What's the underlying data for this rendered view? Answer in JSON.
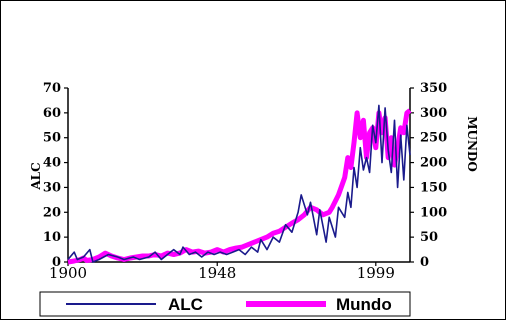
{
  "chart_data": {
    "type": "line",
    "title": "",
    "xlabel": "",
    "x_ticks": [
      "1900",
      "1948",
      "1999"
    ],
    "xlim": [
      1900,
      2010
    ],
    "left_axis": {
      "label": "ALC",
      "ylim": [
        0,
        70
      ],
      "ticks": [
        "0",
        "10",
        "20",
        "30",
        "40",
        "50",
        "60",
        "70"
      ]
    },
    "right_axis": {
      "label": "MUNDO",
      "ylim": [
        0,
        350
      ],
      "ticks": [
        "0",
        "50",
        "100",
        "150",
        "200",
        "250",
        "300",
        "350"
      ]
    },
    "grid": false,
    "legend_placement": "bottom",
    "series": [
      {
        "name": "ALC",
        "axis": "left",
        "color": "#1a1a8c",
        "points": [
          [
            1900,
            1
          ],
          [
            1902,
            4
          ],
          [
            1903,
            1
          ],
          [
            1905,
            2
          ],
          [
            1907,
            5
          ],
          [
            1908,
            0
          ],
          [
            1910,
            1
          ],
          [
            1913,
            3
          ],
          [
            1916,
            2
          ],
          [
            1918,
            1
          ],
          [
            1921,
            2
          ],
          [
            1923,
            1
          ],
          [
            1926,
            2
          ],
          [
            1928,
            4
          ],
          [
            1930,
            1
          ],
          [
            1932,
            3
          ],
          [
            1934,
            5
          ],
          [
            1936,
            3
          ],
          [
            1937,
            6
          ],
          [
            1939,
            3
          ],
          [
            1941,
            4
          ],
          [
            1943,
            2
          ],
          [
            1945,
            4
          ],
          [
            1947,
            3
          ],
          [
            1949,
            4
          ],
          [
            1951,
            3
          ],
          [
            1953,
            4
          ],
          [
            1955,
            5
          ],
          [
            1957,
            3
          ],
          [
            1959,
            6
          ],
          [
            1961,
            4
          ],
          [
            1962,
            9
          ],
          [
            1964,
            5
          ],
          [
            1966,
            10
          ],
          [
            1968,
            8
          ],
          [
            1970,
            15
          ],
          [
            1972,
            12
          ],
          [
            1974,
            20
          ],
          [
            1975,
            27
          ],
          [
            1977,
            19
          ],
          [
            1978,
            24
          ],
          [
            1980,
            11
          ],
          [
            1981,
            21
          ],
          [
            1983,
            8
          ],
          [
            1984,
            18
          ],
          [
            1986,
            10
          ],
          [
            1987,
            22
          ],
          [
            1989,
            18
          ],
          [
            1990,
            28
          ],
          [
            1991,
            22
          ],
          [
            1992,
            38
          ],
          [
            1993,
            30
          ],
          [
            1994,
            46
          ],
          [
            1995,
            37
          ],
          [
            1996,
            42
          ],
          [
            1997,
            36
          ],
          [
            1998,
            55
          ],
          [
            1999,
            48
          ],
          [
            2000,
            63
          ],
          [
            2001,
            40
          ],
          [
            2002,
            62
          ],
          [
            2003,
            45
          ],
          [
            2004,
            36
          ],
          [
            2005,
            57
          ],
          [
            2006,
            30
          ],
          [
            2007,
            51
          ],
          [
            2008,
            33
          ],
          [
            2009,
            55
          ],
          [
            2010,
            43
          ]
        ]
      },
      {
        "name": "Mundo",
        "axis": "right",
        "color": "#ff00ff",
        "points": [
          [
            1900,
            0
          ],
          [
            1902,
            2
          ],
          [
            1904,
            5
          ],
          [
            1905,
            8
          ],
          [
            1906,
            3
          ],
          [
            1908,
            5
          ],
          [
            1910,
            10
          ],
          [
            1912,
            18
          ],
          [
            1914,
            12
          ],
          [
            1916,
            8
          ],
          [
            1918,
            5
          ],
          [
            1920,
            8
          ],
          [
            1922,
            10
          ],
          [
            1924,
            12
          ],
          [
            1926,
            12
          ],
          [
            1928,
            15
          ],
          [
            1930,
            12
          ],
          [
            1932,
            18
          ],
          [
            1934,
            15
          ],
          [
            1936,
            18
          ],
          [
            1938,
            25
          ],
          [
            1940,
            20
          ],
          [
            1942,
            22
          ],
          [
            1944,
            18
          ],
          [
            1946,
            20
          ],
          [
            1948,
            25
          ],
          [
            1950,
            20
          ],
          [
            1952,
            25
          ],
          [
            1954,
            28
          ],
          [
            1956,
            30
          ],
          [
            1958,
            35
          ],
          [
            1960,
            40
          ],
          [
            1962,
            45
          ],
          [
            1964,
            50
          ],
          [
            1966,
            58
          ],
          [
            1968,
            62
          ],
          [
            1970,
            70
          ],
          [
            1972,
            78
          ],
          [
            1974,
            85
          ],
          [
            1976,
            95
          ],
          [
            1978,
            110
          ],
          [
            1980,
            105
          ],
          [
            1982,
            95
          ],
          [
            1984,
            100
          ],
          [
            1985,
            110
          ],
          [
            1987,
            135
          ],
          [
            1989,
            170
          ],
          [
            1990,
            210
          ],
          [
            1991,
            190
          ],
          [
            1992,
            240
          ],
          [
            1993,
            300
          ],
          [
            1994,
            250
          ],
          [
            1995,
            285
          ],
          [
            1996,
            210
          ],
          [
            1997,
            260
          ],
          [
            1998,
            270
          ],
          [
            1999,
            230
          ],
          [
            2000,
            300
          ],
          [
            2001,
            260
          ],
          [
            2002,
            290
          ],
          [
            2003,
            210
          ],
          [
            2004,
            250
          ],
          [
            2005,
            195
          ],
          [
            2006,
            230
          ],
          [
            2007,
            270
          ],
          [
            2008,
            260
          ],
          [
            2009,
            300
          ],
          [
            2010,
            305
          ]
        ]
      }
    ]
  }
}
